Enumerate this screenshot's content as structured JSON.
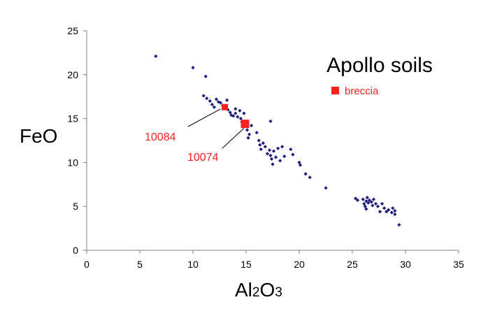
{
  "chart_data": {
    "type": "scatter",
    "title": "Apollo soils",
    "xlabel": {
      "base1": "Al",
      "sub1": "2",
      "base2": "O",
      "sub2": "3"
    },
    "ylabel": "FeO",
    "xlim": [
      0,
      35
    ],
    "ylim": [
      0,
      25
    ],
    "xticks": [
      0,
      5,
      10,
      15,
      20,
      25,
      30,
      35
    ],
    "yticks": [
      0,
      5,
      10,
      15,
      20,
      25
    ],
    "grid": false,
    "legend": {
      "label": "breccia",
      "placement": "top-right",
      "color": "#ff2020"
    },
    "colors": {
      "soil": "#1c1a7e",
      "breccia": "#ff2020"
    },
    "series": [
      {
        "marker": "diamond",
        "points": [
          [
            6.5,
            22.1
          ],
          [
            10.0,
            20.8
          ],
          [
            11.2,
            19.8
          ],
          [
            11.0,
            17.6
          ],
          [
            11.3,
            17.3
          ],
          [
            11.6,
            17.0
          ],
          [
            11.8,
            16.6
          ],
          [
            12.0,
            16.3
          ],
          [
            12.2,
            17.2
          ],
          [
            12.4,
            16.9
          ],
          [
            12.6,
            16.8
          ],
          [
            12.8,
            16.5
          ],
          [
            13.0,
            16.3
          ],
          [
            13.2,
            17.1
          ],
          [
            13.3,
            16.0
          ],
          [
            13.5,
            15.7
          ],
          [
            13.6,
            15.4
          ],
          [
            13.8,
            15.3
          ],
          [
            14.0,
            16.1
          ],
          [
            14.0,
            15.6
          ],
          [
            14.2,
            15.2
          ],
          [
            14.4,
            15.9
          ],
          [
            14.5,
            15.0
          ],
          [
            14.6,
            14.6
          ],
          [
            14.7,
            14.2
          ],
          [
            14.8,
            15.6
          ],
          [
            15.0,
            14.1
          ],
          [
            15.1,
            13.7
          ],
          [
            15.3,
            13.2
          ],
          [
            15.2,
            12.8
          ],
          [
            15.5,
            14.2
          ],
          [
            16.0,
            13.4
          ],
          [
            16.2,
            12.5
          ],
          [
            16.3,
            12.0
          ],
          [
            16.4,
            11.5
          ],
          [
            16.6,
            12.2
          ],
          [
            16.8,
            11.8
          ],
          [
            17.0,
            11.0
          ],
          [
            17.2,
            11.4
          ],
          [
            17.3,
            10.8
          ],
          [
            17.4,
            10.4
          ],
          [
            17.5,
            9.8
          ],
          [
            17.6,
            11.3
          ],
          [
            17.8,
            10.6
          ],
          [
            18.0,
            11.6
          ],
          [
            18.2,
            10.2
          ],
          [
            18.4,
            11.8
          ],
          [
            18.6,
            10.7
          ],
          [
            17.3,
            14.7
          ],
          [
            19.2,
            11.5
          ],
          [
            19.4,
            10.9
          ],
          [
            20.0,
            10.0
          ],
          [
            20.1,
            9.7
          ],
          [
            20.6,
            8.7
          ],
          [
            21.0,
            8.3
          ],
          [
            22.5,
            7.1
          ],
          [
            25.3,
            5.9
          ],
          [
            25.5,
            5.7
          ],
          [
            26.0,
            5.8
          ],
          [
            26.1,
            5.3
          ],
          [
            26.2,
            5.0
          ],
          [
            26.3,
            4.7
          ],
          [
            26.3,
            5.6
          ],
          [
            26.4,
            6.0
          ],
          [
            26.5,
            5.4
          ],
          [
            26.6,
            5.7
          ],
          [
            26.8,
            5.5
          ],
          [
            26.9,
            5.1
          ],
          [
            27.0,
            5.8
          ],
          [
            27.2,
            5.3
          ],
          [
            27.4,
            5.0
          ],
          [
            27.6,
            4.4
          ],
          [
            27.8,
            5.3
          ],
          [
            28.0,
            4.8
          ],
          [
            28.2,
            4.4
          ],
          [
            28.4,
            4.6
          ],
          [
            28.7,
            4.3
          ],
          [
            28.8,
            4.8
          ],
          [
            29.0,
            4.5
          ],
          [
            29.0,
            4.1
          ],
          [
            29.4,
            2.9
          ]
        ]
      },
      {
        "name": "breccia",
        "marker": "square",
        "points": [
          [
            13.0,
            16.3
          ],
          [
            14.9,
            14.4
          ]
        ]
      }
    ],
    "annotations": [
      {
        "text": "10084",
        "point": [
          12.6,
          16.1
        ]
      },
      {
        "text": "10074",
        "point": [
          14.8,
          13.9
        ]
      }
    ]
  }
}
